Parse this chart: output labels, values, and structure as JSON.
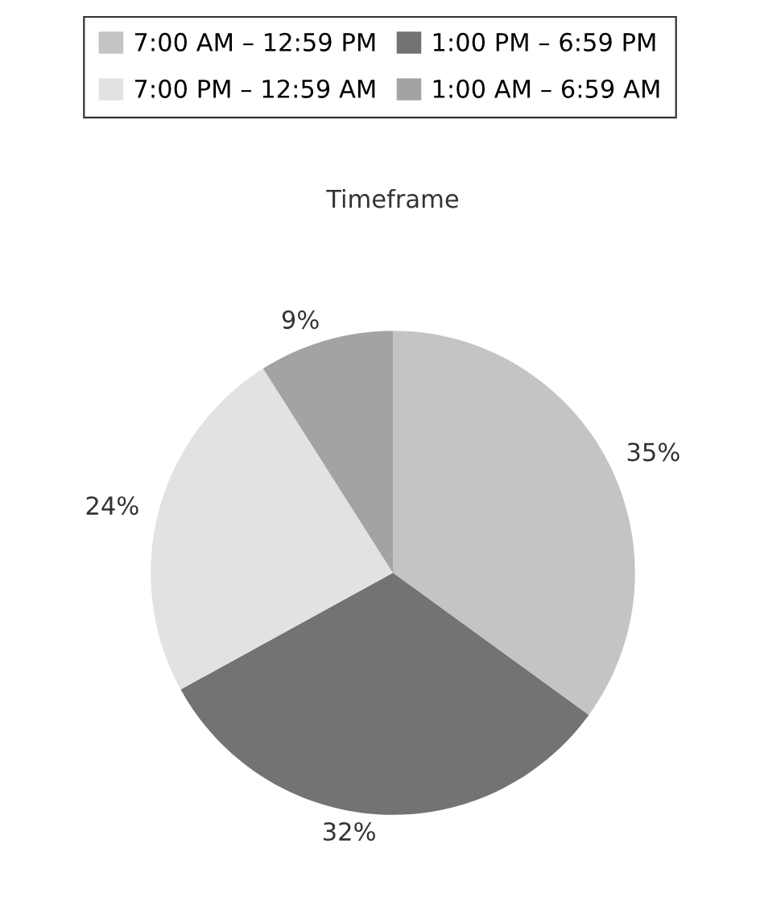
{
  "chart_data": {
    "type": "pie",
    "title": "Timeframe",
    "categories": [
      "7:00 AM – 12:59 PM",
      "1:00 PM – 6:59 PM",
      "7:00 PM – 12:59 AM",
      "1:00 AM – 6:59 AM"
    ],
    "values": [
      35,
      32,
      24,
      9
    ],
    "colors": [
      "#c4c4c4",
      "#737373",
      "#e2e2e2",
      "#a3a3a3"
    ],
    "value_labels": [
      "35%",
      "32%",
      "24%",
      "9%"
    ],
    "legend": "top"
  }
}
